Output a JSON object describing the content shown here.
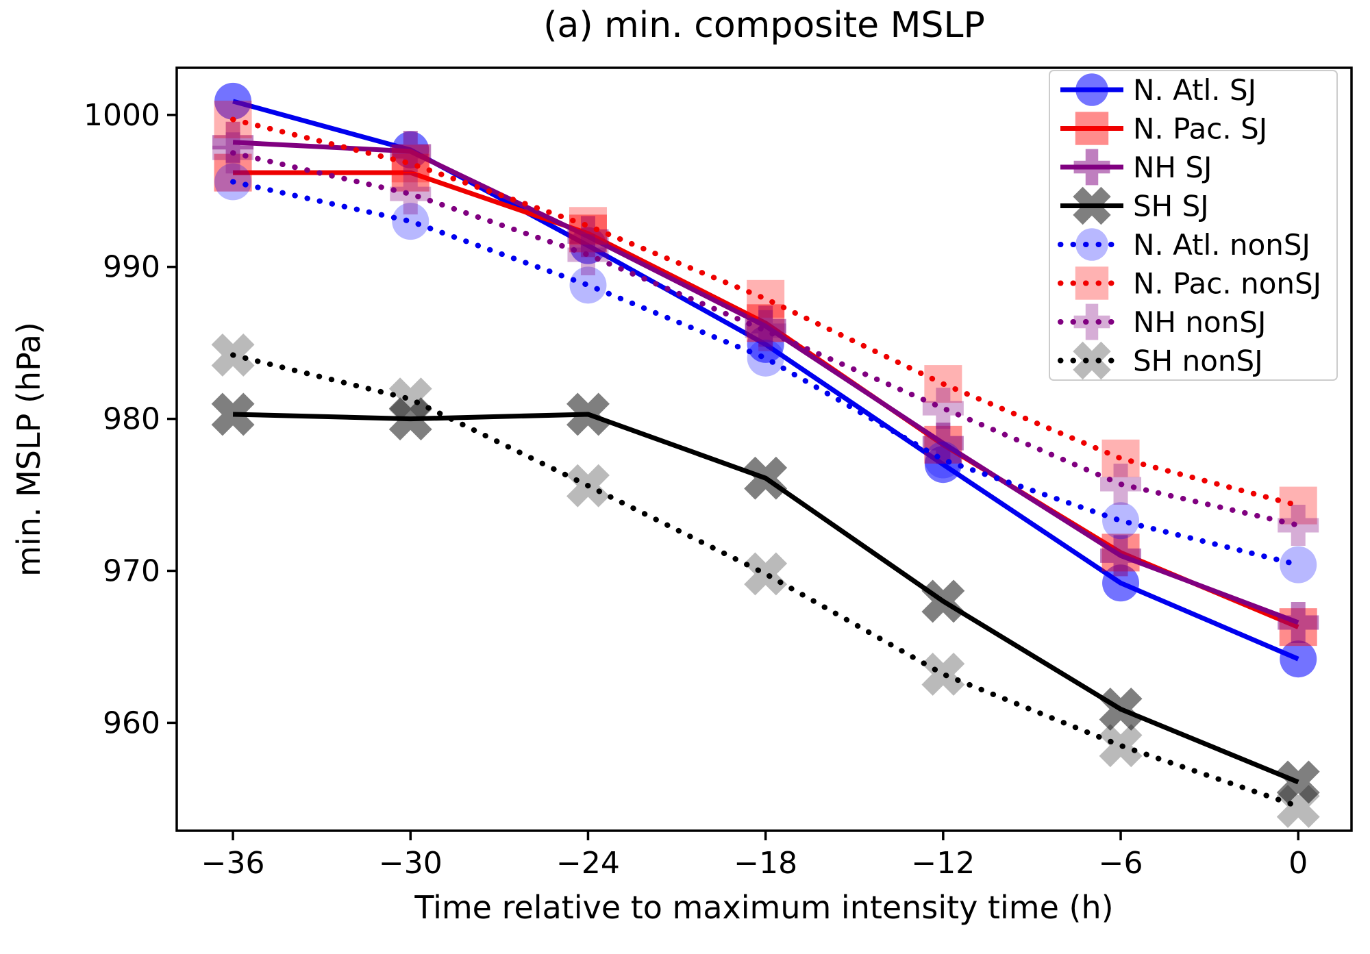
{
  "chart_data": {
    "type": "line",
    "title": "(a) min. composite MSLP",
    "xlabel": "Time relative to maximum intensity time (h)",
    "ylabel": "min. MSLP (hPa)",
    "grid": false,
    "legend_position": "upper right",
    "x": [
      -36,
      -30,
      -24,
      -18,
      -12,
      -6,
      0
    ],
    "x_tick_labels": [
      "−36",
      "−30",
      "−24",
      "−18",
      "−12",
      "−6",
      "0"
    ],
    "y_ticks": [
      1000,
      990,
      980,
      970,
      960
    ],
    "y_tick_labels": [
      "1000",
      "990",
      "980",
      "970",
      "960"
    ],
    "xlim": [
      -37.9,
      1.8
    ],
    "ylim": [
      952.9,
      1003.1
    ],
    "axis_color": "#000000",
    "legend_border_color": "#cccccc",
    "series": [
      {
        "name": "N. Atl. SJ",
        "line_style": "solid",
        "line_color": "#0000ee",
        "marker": "circle",
        "marker_color": "#0000ff",
        "marker_opacity": 0.55,
        "values": [
          1000.9,
          997.7,
          991.4,
          984.9,
          977.0,
          969.2,
          964.2
        ]
      },
      {
        "name": "N. Pac. SJ",
        "line_style": "solid",
        "line_color": "#ee0000",
        "marker": "square",
        "marker_color": "#ff0000",
        "marker_opacity": 0.45,
        "values": [
          996.2,
          996.2,
          992.2,
          986.3,
          978.3,
          971.2,
          966.3
        ]
      },
      {
        "name": "NH SJ",
        "line_style": "solid",
        "line_color": "#800080",
        "marker": "plus",
        "marker_color": "#800080",
        "marker_opacity": 0.5,
        "values": [
          998.2,
          997.6,
          992.0,
          986.1,
          978.4,
          971.0,
          966.6
        ]
      },
      {
        "name": "SH SJ",
        "line_style": "solid",
        "line_color": "#000000",
        "marker": "x",
        "marker_color": "#000000",
        "marker_opacity": 0.5,
        "values": [
          980.3,
          980.0,
          980.3,
          976.1,
          968.0,
          960.9,
          956.1
        ]
      },
      {
        "name": "N. Atl. nonSJ",
        "line_style": "dotted",
        "line_color": "#0000ee",
        "marker": "circle",
        "marker_color": "#0000ff",
        "marker_opacity": 0.28,
        "values": [
          995.6,
          993.0,
          988.8,
          984.0,
          977.3,
          973.3,
          970.4
        ]
      },
      {
        "name": "N. Pac. nonSJ",
        "line_style": "dotted",
        "line_color": "#ee0000",
        "marker": "square",
        "marker_color": "#ff0000",
        "marker_opacity": 0.3,
        "values": [
          999.7,
          996.8,
          992.7,
          987.9,
          982.3,
          977.4,
          974.3
        ]
      },
      {
        "name": "NH nonSJ",
        "line_style": "dotted",
        "line_color": "#800080",
        "marker": "plus",
        "marker_color": "#800080",
        "marker_opacity": 0.32,
        "values": [
          997.5,
          994.8,
          990.8,
          985.8,
          980.7,
          975.7,
          973.0
        ]
      },
      {
        "name": "SH nonSJ",
        "line_style": "dotted",
        "line_color": "#000000",
        "marker": "x",
        "marker_color": "#000000",
        "marker_opacity": 0.27,
        "values": [
          984.2,
          981.3,
          975.6,
          969.8,
          963.2,
          958.5,
          954.5
        ]
      }
    ]
  }
}
